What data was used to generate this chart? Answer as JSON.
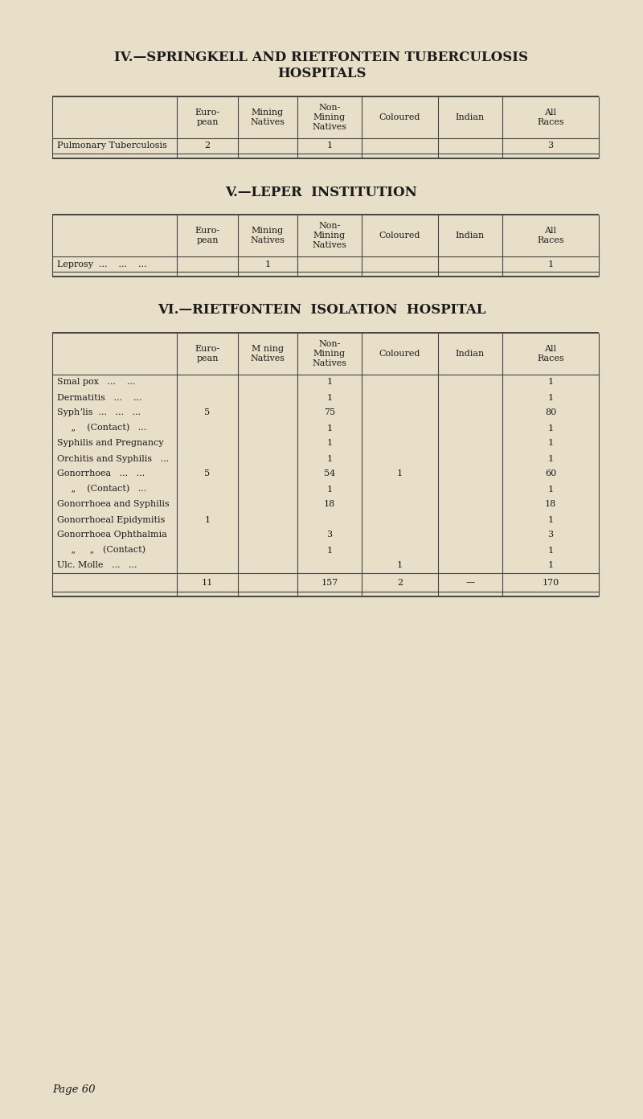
{
  "bg_color": "#e8dfc8",
  "text_color": "#1a1a1a",
  "line_color": "#444444",
  "page_label": "Page 60",
  "section_iv": {
    "title_line1": "IV.—SPRINGKELL AND RIETFONTEIN TUBERCULOSIS",
    "title_line2": "HOSPITALS",
    "col_headers": [
      "Euro-\npean",
      "Mining\nNatives",
      "Non-\nMining\nNatives",
      "Coloured",
      "Indian",
      "All\nRaces"
    ],
    "rows": [
      {
        "label": "Pulmonary Tuberculosis",
        "vals": [
          "2",
          "",
          "1",
          "",
          "",
          "3"
        ]
      }
    ]
  },
  "section_v": {
    "title": "V.—LEPER  INSTITUTION",
    "col_headers": [
      "Euro-\npean",
      "Mining\nNatives",
      "Non-\nMining\nNatives",
      "Coloured",
      "Indian",
      "All\nRaces"
    ],
    "rows": [
      {
        "label": "Leprosy  ...    ...    ...",
        "vals": [
          "",
          "1",
          "",
          "",
          "",
          "1"
        ]
      }
    ]
  },
  "section_vi": {
    "title": "VI.—RIETFONTEIN  ISOLATION  HOSPITAL",
    "col_headers": [
      "Euro-\npean",
      "M ning\nNatives",
      "Non-\nMining\nNatives",
      "Coloured",
      "Indian",
      "All\nRaces"
    ],
    "rows": [
      {
        "label": "Smal pox   ...    ...",
        "vals": [
          "",
          "",
          "1",
          "",
          "",
          "1"
        ]
      },
      {
        "label": "Dermatitis   ...    ...",
        "vals": [
          "",
          "",
          "1",
          "",
          "",
          "1"
        ]
      },
      {
        "label": "Syphʼlis  ...   ...   ...",
        "vals": [
          "5",
          "",
          "75",
          "",
          "",
          "80"
        ]
      },
      {
        "label": "     „    (Contact)   ...",
        "vals": [
          "",
          "",
          "1",
          "",
          "",
          "1"
        ]
      },
      {
        "label": "Syphilis and Pregnancy",
        "vals": [
          "",
          "",
          "1",
          "",
          "",
          "1"
        ]
      },
      {
        "label": "Orchitis and Syphilis   ...",
        "vals": [
          "",
          "",
          "1",
          "",
          "",
          "1"
        ]
      },
      {
        "label": "Gonorrhoea   ...   ...",
        "vals": [
          "5",
          "",
          "54",
          "1",
          "",
          "60"
        ]
      },
      {
        "label": "     „    (Contact)   ...",
        "vals": [
          "",
          "",
          "1",
          "",
          "",
          "1"
        ]
      },
      {
        "label": "Gonorrhoea and Syphilis",
        "vals": [
          "",
          "",
          "18",
          "",
          "",
          "18"
        ]
      },
      {
        "label": "Gonorrhoeal Epidymitis",
        "vals": [
          "1",
          "",
          "",
          "",
          "",
          "1"
        ]
      },
      {
        "label": "Gonorrhoea Ophthalmia",
        "vals": [
          "",
          "",
          "3",
          "",
          "",
          "3"
        ]
      },
      {
        "label": "     „     „   (Contact)",
        "vals": [
          "",
          "",
          "1",
          "",
          "",
          "1"
        ]
      },
      {
        "label": "Ulc. Molle   ...   ...",
        "vals": [
          "",
          "",
          "",
          "1",
          "",
          "1"
        ]
      }
    ],
    "totals": [
      "11",
      "",
      "157",
      "2",
      "—",
      "170"
    ]
  }
}
